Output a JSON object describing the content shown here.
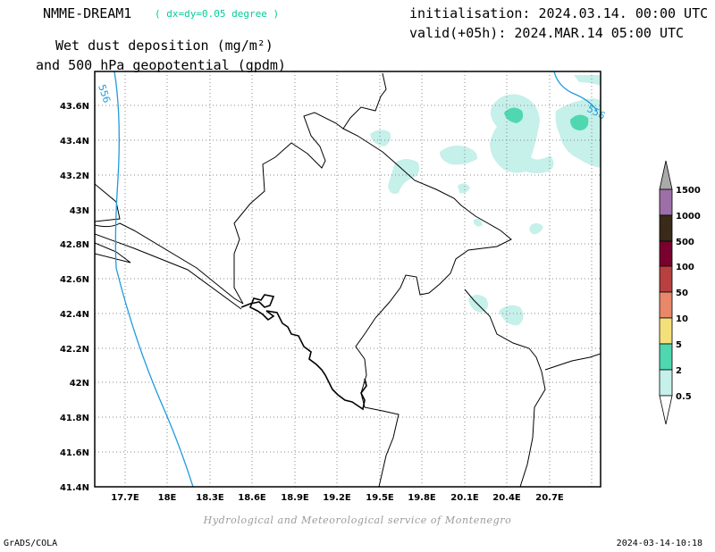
{
  "header": {
    "model_name": "NMME-DREAM1",
    "resolution": "( dx=dy=0.05 degree )",
    "init_line": "initialisation: 2024.03.14. 00:00 UTC",
    "valid_line": "valid(+05h): 2024.MAR.14 05:00 UTC",
    "title_line1": "Wet dust deposition (mg/m²)",
    "title_line2": "and 500 hPa geopotential (gpdm)"
  },
  "map": {
    "lat_labels": [
      "43.6N",
      "43.4N",
      "43.2N",
      "43N",
      "42.8N",
      "42.6N",
      "42.4N",
      "42.2N",
      "42N",
      "41.8N",
      "41.6N",
      "41.4N"
    ],
    "lon_labels": [
      "17.7E",
      "18E",
      "18.3E",
      "18.6E",
      "18.9E",
      "19.2E",
      "19.5E",
      "19.8E",
      "20.1E",
      "20.4E",
      "20.7E"
    ],
    "contour_labels": [
      "556",
      "556"
    ],
    "colors": {
      "contour": "#1f9bdc",
      "border": "#000000",
      "grid": "#888888"
    }
  },
  "legend": {
    "levels": [
      "1500",
      "1000",
      "500",
      "100",
      "50",
      "10",
      "5",
      "2",
      "0.5"
    ],
    "colors": [
      "#9c6fa8",
      "#3a2a1a",
      "#7a0030",
      "#b84040",
      "#e8876a",
      "#f4e07a",
      "#4fd8b0",
      "#c6f0ea"
    ],
    "arrow_color": "#aaaaaa"
  },
  "footer": {
    "credit": "Hydrological and Meteorological service of Montenegro",
    "left": "GrADS/COLA",
    "right": "2024-03-14-10:18"
  }
}
